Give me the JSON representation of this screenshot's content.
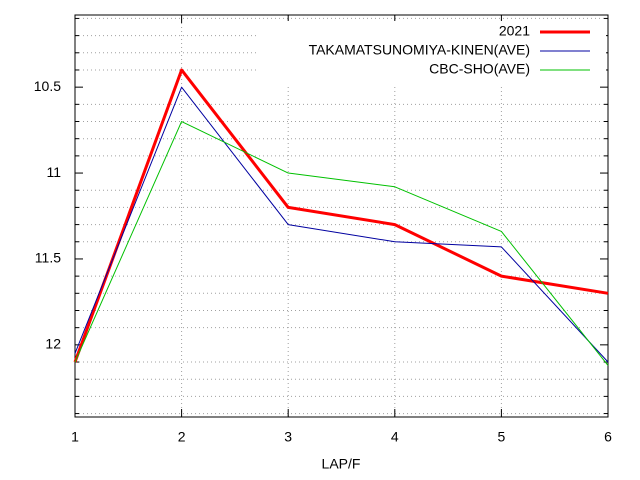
{
  "chart_data": {
    "type": "line",
    "x_label": "LAP/F",
    "x": [
      1,
      2,
      3,
      4,
      5,
      6
    ],
    "xlim": [
      1,
      6
    ],
    "xticks": [
      1,
      2,
      3,
      4,
      5,
      6
    ],
    "ylim": [
      12.42,
      10.08
    ],
    "yticks": [
      10.5,
      11,
      11.5,
      12
    ],
    "y_minor_ticks": [
      10.1,
      10.2,
      10.3,
      10.4,
      10.6,
      10.7,
      10.8,
      10.9,
      11.1,
      11.2,
      11.3,
      11.4,
      11.6,
      11.7,
      11.8,
      11.9,
      12.1,
      12.2,
      12.3,
      12.4
    ],
    "grid": true,
    "legend": "top-right",
    "series": [
      {
        "name": "2021",
        "color": "#ff0000",
        "width": 3,
        "values": [
          12.1,
          10.4,
          11.2,
          11.3,
          11.6,
          11.7
        ]
      },
      {
        "name": "TAKAMATSUNOMIYA-KINEN(AVE)",
        "color": "#0000a0",
        "width": 1,
        "values": [
          12.05,
          10.5,
          11.3,
          11.4,
          11.43,
          12.1
        ]
      },
      {
        "name": "CBC-SHO(AVE)",
        "color": "#00c000",
        "width": 1,
        "values": [
          12.1,
          10.7,
          11.0,
          11.08,
          11.34,
          12.12
        ]
      }
    ]
  }
}
